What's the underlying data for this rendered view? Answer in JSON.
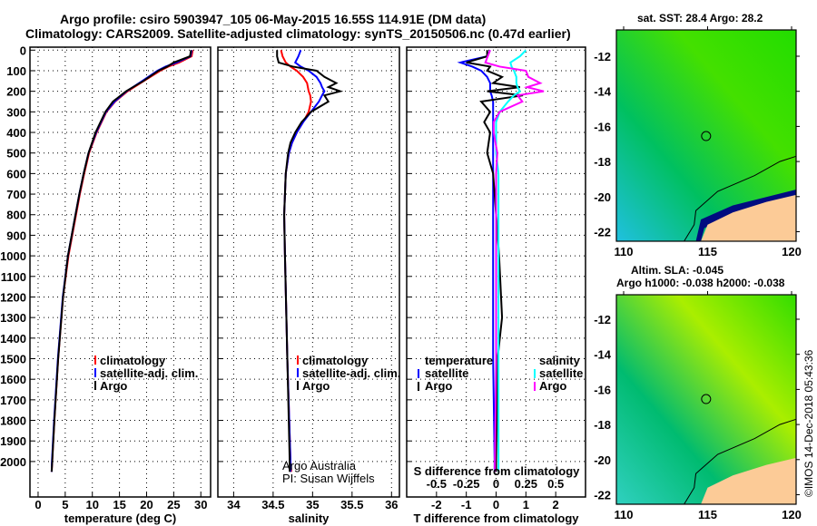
{
  "title": {
    "line1": "Argo profile: csiro 5903947_105 06-May-2015 16.55S 114.91E (DM data)",
    "line2": "Climatology: CARS2009. Satellite-adjusted climatology: synTS_20150506.nc (0.47d earlier)"
  },
  "colors": {
    "climatology": "#ff0000",
    "satellite": "#0000ff",
    "argo": "#000000",
    "sal_satellite": "#00ffff",
    "sal_argo": "#ff00ff",
    "land": "#fccb97"
  },
  "chart_data": [
    {
      "type": "line",
      "name": "temperature",
      "xlabel": "temperature (deg C)",
      "ylabel": "depth",
      "xlim": [
        -1.5,
        31.8
      ],
      "ylim": [
        2050,
        0
      ],
      "xticks": [
        0,
        5,
        10,
        15,
        20,
        25,
        30
      ],
      "yticks": [
        0,
        100,
        200,
        300,
        400,
        500,
        600,
        700,
        800,
        900,
        1000,
        1100,
        1200,
        1300,
        1400,
        1500,
        1600,
        1700,
        1800,
        1900,
        2000
      ],
      "grid": true,
      "legend": {
        "placement": "lower-right",
        "entries": [
          "climatology",
          "satellite-adj. clim.",
          "Argo"
        ]
      },
      "depth": [
        0,
        30,
        60,
        80,
        100,
        150,
        200,
        250,
        300,
        400,
        500,
        600,
        700,
        800,
        1000,
        1200,
        1500,
        1800,
        2000,
        2050
      ],
      "series": [
        {
          "name": "climatology",
          "values": [
            28.5,
            28.3,
            26,
            24,
            22.5,
            19.5,
            16.5,
            14.2,
            12.6,
            10.8,
            9.4,
            8.5,
            7.7,
            7,
            5.6,
            4.6,
            3.7,
            3,
            2.6,
            2.5
          ]
        },
        {
          "name": "satellite-adj. clim.",
          "values": [
            28.3,
            28.1,
            25.5,
            23.5,
            22,
            19.2,
            16.3,
            14.1,
            12.5,
            10.7,
            9.3,
            8.4,
            7.6,
            6.9,
            5.5,
            4.55,
            3.65,
            2.95,
            2.55,
            2.5
          ]
        },
        {
          "name": "Argo",
          "values": [
            28.2,
            28,
            25,
            23.8,
            22.2,
            19.4,
            16.2,
            13.8,
            12.4,
            10.6,
            9.3,
            8.4,
            7.6,
            6.9,
            5.5,
            4.6,
            3.7,
            3,
            2.6,
            2.5
          ]
        }
      ]
    },
    {
      "type": "line",
      "name": "salinity",
      "xlabel": "salinity",
      "xlim": [
        33.8,
        36.1
      ],
      "ylim": [
        2050,
        0
      ],
      "xticks": [
        34,
        34.5,
        35,
        35.5,
        36
      ],
      "grid": true,
      "legend": {
        "placement": "lower-right",
        "entries": [
          "climatology",
          "satellite-adj. clim.",
          "Argo"
        ]
      },
      "annotation": [
        "Argo Australia",
        "PI: Susan Wijffels"
      ],
      "depth": [
        0,
        30,
        60,
        80,
        100,
        130,
        160,
        180,
        200,
        220,
        250,
        300,
        350,
        400,
        450,
        500,
        600,
        800,
        1000,
        1500,
        2000,
        2050
      ],
      "series": [
        {
          "name": "climatology",
          "values": [
            34.6,
            34.62,
            34.66,
            34.72,
            34.8,
            34.88,
            34.93,
            34.94,
            34.95,
            34.97,
            34.98,
            34.95,
            34.88,
            34.8,
            34.74,
            34.7,
            34.66,
            34.64,
            34.65,
            34.68,
            34.72,
            34.73
          ]
        },
        {
          "name": "satellite-adj. clim.",
          "values": [
            34.85,
            34.82,
            34.78,
            34.85,
            34.95,
            35.05,
            35.1,
            35.12,
            35.15,
            35.12,
            35.08,
            34.98,
            34.88,
            34.8,
            34.74,
            34.7,
            34.66,
            34.64,
            34.65,
            34.68,
            34.72,
            34.72
          ]
        },
        {
          "name": "Argo",
          "values": [
            34.55,
            34.55,
            34.57,
            34.75,
            35.05,
            35.15,
            35.3,
            35.2,
            35.35,
            35.15,
            35.2,
            34.98,
            34.86,
            34.78,
            34.72,
            34.69,
            34.66,
            34.64,
            34.65,
            34.68,
            34.71,
            34.71
          ]
        }
      ]
    },
    {
      "type": "line",
      "name": "differences",
      "xlabel": "T difference from climatology",
      "xlabel2": "S difference from climatology",
      "xlim": [
        -3,
        3
      ],
      "xticks": [
        -2,
        -1,
        0,
        1,
        2
      ],
      "xticks2": [
        -0.5,
        -0.25,
        0,
        0.25,
        0.5
      ],
      "ylim": [
        2050,
        0
      ],
      "grid": true,
      "legend": {
        "placement": "lower",
        "groups": [
          {
            "title": "temperature",
            "entries": [
              "satellite",
              "Argo"
            ]
          },
          {
            "title": "salinity",
            "entries": [
              "satellite",
              "Argo"
            ]
          }
        ]
      },
      "depth": [
        0,
        30,
        60,
        80,
        100,
        130,
        160,
        180,
        200,
        220,
        250,
        300,
        350,
        400,
        500,
        600,
        800,
        1000,
        1300,
        1500,
        2000,
        2050
      ],
      "series": [
        {
          "name": "T satellite",
          "values": [
            -0.2,
            -0.3,
            -1.2,
            -0.8,
            -0.5,
            -0.3,
            -0.2,
            -0.2,
            -0.2,
            -0.15,
            -0.1,
            -0.1,
            -0.1,
            -0.1,
            -0.1,
            -0.1,
            -0.1,
            -0.1,
            -0.1,
            -0.1,
            -0.05,
            -0.05
          ]
        },
        {
          "name": "T Argo",
          "values": [
            -0.3,
            -0.3,
            -1.0,
            -0.2,
            -0.3,
            0.2,
            -0.1,
            0.8,
            -0.3,
            0.9,
            -0.5,
            -0.2,
            -0.4,
            -0.2,
            -0.3,
            -0.1,
            0,
            0.1,
            0.2,
            0.05,
            0,
            0
          ]
        },
        {
          "name": "S satellite",
          "values": [
            0.25,
            0.2,
            0.12,
            0.13,
            0.15,
            0.17,
            0.17,
            0.18,
            0.2,
            0.15,
            0.1,
            0.03,
            0,
            0,
            0,
            0.02,
            0.02,
            0.02,
            0.02,
            0.02,
            0.02,
            0.02
          ]
        },
        {
          "name": "S Argo",
          "values": [
            -0.05,
            -0.07,
            -0.09,
            0.03,
            0.25,
            0.27,
            0.37,
            0.26,
            0.4,
            0.18,
            0.22,
            0.03,
            -0.02,
            -0.02,
            0.01,
            0,
            0,
            0,
            0,
            0,
            -0.01,
            -0.01
          ]
        }
      ]
    }
  ],
  "maps": [
    {
      "title": "sat. SST: 28.4 Argo: 28.2",
      "lat_ticks": [
        "-12",
        "-14",
        "-16",
        "-18",
        "-20",
        "-22"
      ],
      "lon_ticks": [
        "110",
        "115",
        "120"
      ],
      "float_lon": 114.91,
      "float_lat": -16.55
    },
    {
      "title1": "Altim. SLA: -0.045",
      "title2": "Argo h1000: -0.038 h2000: -0.038",
      "lat_ticks": [
        "-12",
        "-14",
        "-16",
        "-18",
        "-20",
        "-22"
      ],
      "lon_ticks": [
        "110",
        "115",
        "120"
      ],
      "float_lon": 114.91,
      "float_lat": -16.55
    }
  ],
  "timestamp": "©IMOS 14-Dec-2018 05:43:36"
}
